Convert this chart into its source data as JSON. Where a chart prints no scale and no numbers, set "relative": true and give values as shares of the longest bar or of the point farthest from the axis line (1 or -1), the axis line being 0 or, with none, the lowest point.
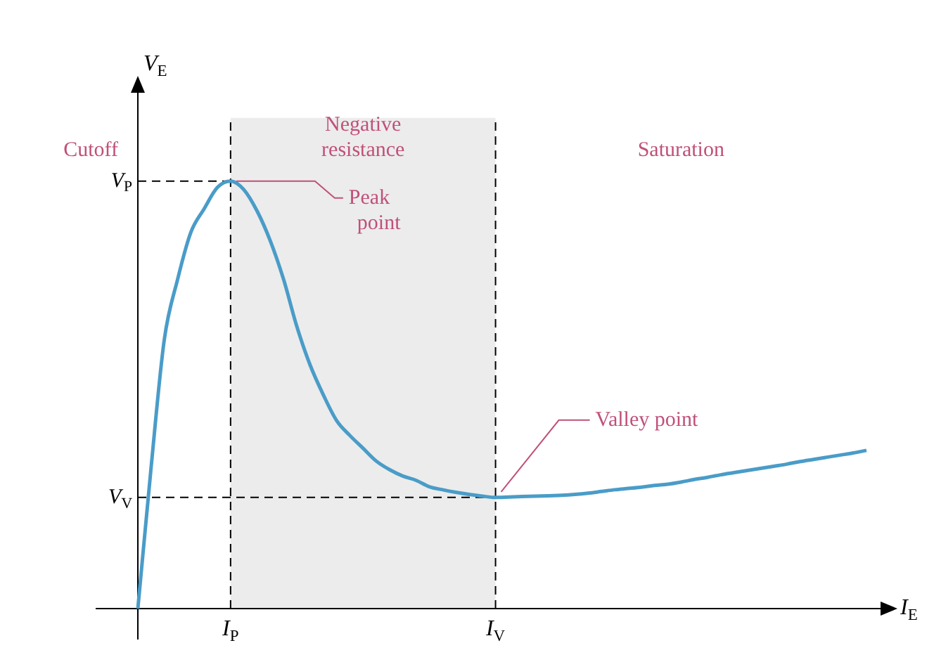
{
  "chart_data": {
    "type": "line",
    "relative": true,
    "xlabel": "I$_{E}$",
    "ylabel": "V$_{E}$",
    "categories": [
      null,
      null,
      null,
      null,
      null,
      null,
      null,
      "I$_{P}$",
      null,
      null,
      null,
      null,
      null,
      null,
      null,
      null,
      null,
      null,
      null,
      null,
      null,
      null,
      null,
      null,
      null,
      null,
      null,
      "I$_{V}$",
      null,
      null,
      null,
      null,
      null,
      null,
      null,
      null,
      null,
      null,
      null,
      null,
      null,
      null,
      null,
      null,
      null,
      null,
      null,
      null,
      null,
      null,
      null,
      null,
      null,
      null,
      null,
      null
    ],
    "series": [
      {
        "color": "#4a9cc8",
        "values": [
          0,
          0.33,
          0.63,
          0.77,
          0.88,
          0.935,
          0.985,
          1,
          0.98,
          0.93,
          0.86,
          0.77,
          0.66,
          0.57,
          0.5,
          0.44,
          0.405,
          0.375,
          0.345,
          0.325,
          0.31,
          0.3,
          0.285,
          0.278,
          0.272,
          0.267,
          0.263,
          0.26,
          0.261,
          0.262,
          0.263,
          0.264,
          0.265,
          0.267,
          0.27,
          0.274,
          0.278,
          0.281,
          0.284,
          0.288,
          0.291,
          0.296,
          0.302,
          0.307,
          0.313,
          0.318,
          0.323,
          0.328,
          0.333,
          0.338,
          0.344,
          0.349,
          0.354,
          0.359,
          0.364,
          0.37
        ]
      }
    ],
    "ref_lines": [
      {
        "axis": "x",
        "value": "I$_{P}$",
        "line_style": "dashed"
      },
      {
        "axis": "x",
        "value": "I$_{V}$",
        "line_style": "dashed"
      },
      {
        "axis": "y",
        "value": 1,
        "label": "V$_{P}$",
        "line_style": "dashed"
      },
      {
        "axis": "y",
        "value": 0.26,
        "label": "V$_{V}$",
        "line_style": "dashed"
      }
    ],
    "bands": [
      {
        "axis": "x",
        "from": "I$_{P}$",
        "to": "I$_{V}$",
        "label": "Negative resistance",
        "color": "#ececec"
      }
    ],
    "annotations": [
      "Cutoff",
      "Saturation",
      {
        "text": "Peak point",
        "x": "I$_{P}$",
        "y": 1
      },
      {
        "text": "Valley point",
        "x": "I$_{V}$",
        "y": 0.26
      }
    ],
    "legend": false,
    "marker": "none",
    "line_style": "solid"
  }
}
